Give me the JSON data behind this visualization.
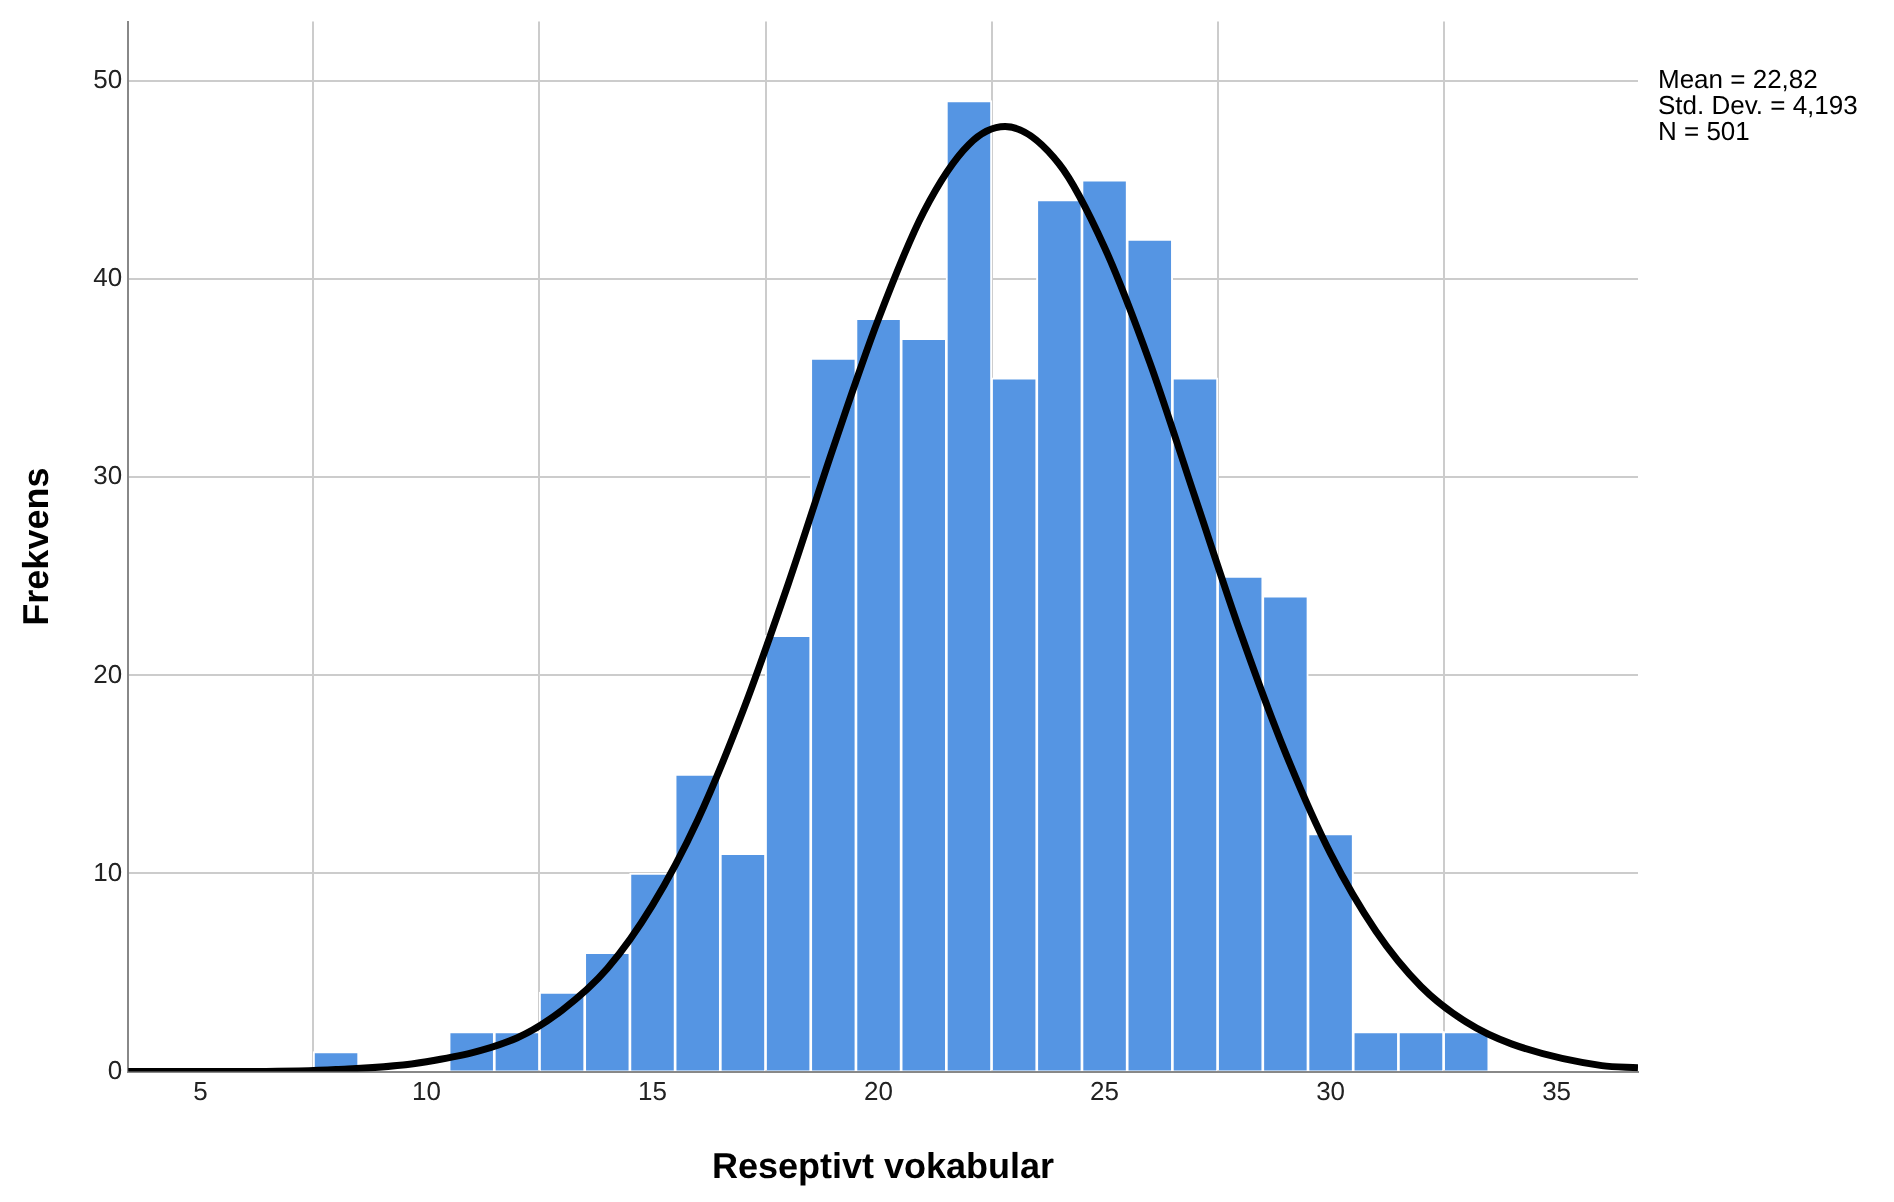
{
  "chart_data": {
    "type": "histogram",
    "xlabel": "Reseptivt vokabular",
    "ylabel": "Frekvens",
    "bins": [
      7.5,
      8.5,
      9.5,
      10.5,
      11.5,
      12.5,
      13.5,
      14.5,
      15.5,
      16.5,
      17.5,
      18.5,
      19.5,
      20.5,
      21.5,
      22.5,
      23.5,
      24.5,
      25.5,
      26.5,
      27.5,
      28.5,
      29.5,
      30.5,
      31.5,
      32.5,
      33.5
    ],
    "values": [
      1,
      0,
      0,
      2,
      2,
      4,
      6,
      10,
      15,
      11,
      22,
      36,
      38,
      37,
      49,
      35,
      44,
      45,
      42,
      35,
      25,
      24,
      12,
      2,
      2,
      2
    ],
    "color": "#5595e3",
    "series": [
      {
        "type": "line",
        "color": "#000000",
        "x": [
          3.4,
          6,
          8,
          10,
          12,
          13,
          14,
          15,
          16,
          17,
          18,
          19,
          20,
          21,
          22,
          22.8,
          24,
          25,
          26,
          27,
          28,
          29,
          30,
          31,
          32,
          33,
          34,
          36,
          36.8
        ],
        "values": [
          0,
          0,
          0.1,
          0.5,
          1.7,
          3.1,
          5.2,
          8.4,
          12.7,
          18.2,
          24.6,
          31.5,
          38,
          43.4,
          46.8,
          47.7,
          45.8,
          41.6,
          35.8,
          29,
          22.2,
          16.1,
          11,
          7.1,
          4.3,
          2.5,
          1.4,
          0.3,
          0.2
        ]
      }
    ],
    "xlim": [
      3.4,
      36.8
    ],
    "xticks": [
      5,
      10,
      15,
      20,
      25,
      30,
      35
    ],
    "ylim": [
      0,
      53
    ],
    "yticks": [
      0,
      10,
      20,
      30,
      40,
      50
    ],
    "grid": true,
    "legend": false,
    "marker": "none",
    "annotations": [
      "Mean = 22,82",
      "Std. Dev. = 4,193",
      "N = 501"
    ]
  }
}
